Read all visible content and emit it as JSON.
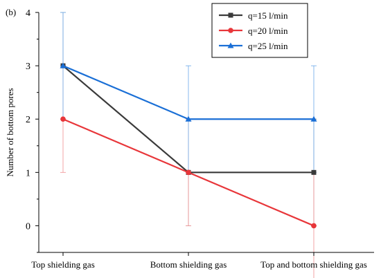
{
  "panel_label": "(b)",
  "chart_data": {
    "type": "line",
    "categories": [
      "Top shielding gas",
      "Bottom shielding gas",
      "Top and bottom shielding gas"
    ],
    "ylabel": "Number of bottom pores",
    "xlabel": "",
    "ylim": [
      -0.5,
      4
    ],
    "yticks": [
      0,
      1,
      2,
      3,
      4
    ],
    "legend_position": "top-right",
    "series": [
      {
        "name": "q=15 l/min",
        "values": [
          3,
          1,
          1
        ],
        "color": "#3a3a3a",
        "marker": "square",
        "error": [
          1,
          1,
          1
        ]
      },
      {
        "name": "q=20 l/min",
        "values": [
          2,
          1,
          0
        ],
        "color": "#e8363a",
        "marker": "circle",
        "error": [
          1,
          1,
          1
        ]
      },
      {
        "name": "q=25 l/min",
        "values": [
          3,
          2,
          2
        ],
        "color": "#1a6fd6",
        "marker": "triangle",
        "error": [
          1,
          1,
          1
        ]
      }
    ]
  }
}
